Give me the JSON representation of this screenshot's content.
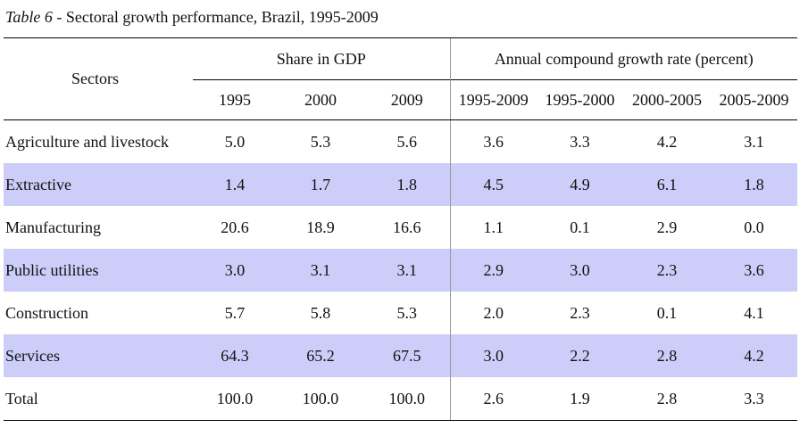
{
  "caption": {
    "label": "Table 6",
    "text": " - Sectoral growth performance, Brazil, 1995-2009"
  },
  "header": {
    "sectors": "Sectors",
    "share_group": "Share in GDP",
    "growth_group": "Annual compound growth rate (percent)",
    "share_years": [
      "1995",
      "2000",
      "2009"
    ],
    "growth_periods": [
      "1995-2009",
      "1995-2000",
      "2000-2005",
      "2005-2009"
    ]
  },
  "colors": {
    "band": "#cdcdf9",
    "rule": "#000000"
  },
  "rows": [
    {
      "sector": "Agriculture and livestock",
      "share": [
        "5.0",
        "5.3",
        "5.6"
      ],
      "growth": [
        "3.6",
        "3.3",
        "4.2",
        "3.1"
      ]
    },
    {
      "sector": "Extractive",
      "share": [
        "1.4",
        "1.7",
        "1.8"
      ],
      "growth": [
        "4.5",
        "4.9",
        "6.1",
        "1.8"
      ]
    },
    {
      "sector": "Manufacturing",
      "share": [
        "20.6",
        "18.9",
        "16.6"
      ],
      "growth": [
        "1.1",
        "0.1",
        "2.9",
        "0.0"
      ]
    },
    {
      "sector": "Public utilities",
      "share": [
        "3.0",
        "3.1",
        "3.1"
      ],
      "growth": [
        "2.9",
        "3.0",
        "2.3",
        "3.6"
      ]
    },
    {
      "sector": "Construction",
      "share": [
        "5.7",
        "5.8",
        "5.3"
      ],
      "growth": [
        "2.0",
        "2.3",
        "0.1",
        "4.1"
      ]
    },
    {
      "sector": "Services",
      "share": [
        "64.3",
        "65.2",
        "67.5"
      ],
      "growth": [
        "3.0",
        "2.2",
        "2.8",
        "4.2"
      ]
    },
    {
      "sector": "Total",
      "share": [
        "100.0",
        "100.0",
        "100.0"
      ],
      "growth": [
        "2.6",
        "1.9",
        "2.8",
        "3.3"
      ]
    }
  ]
}
